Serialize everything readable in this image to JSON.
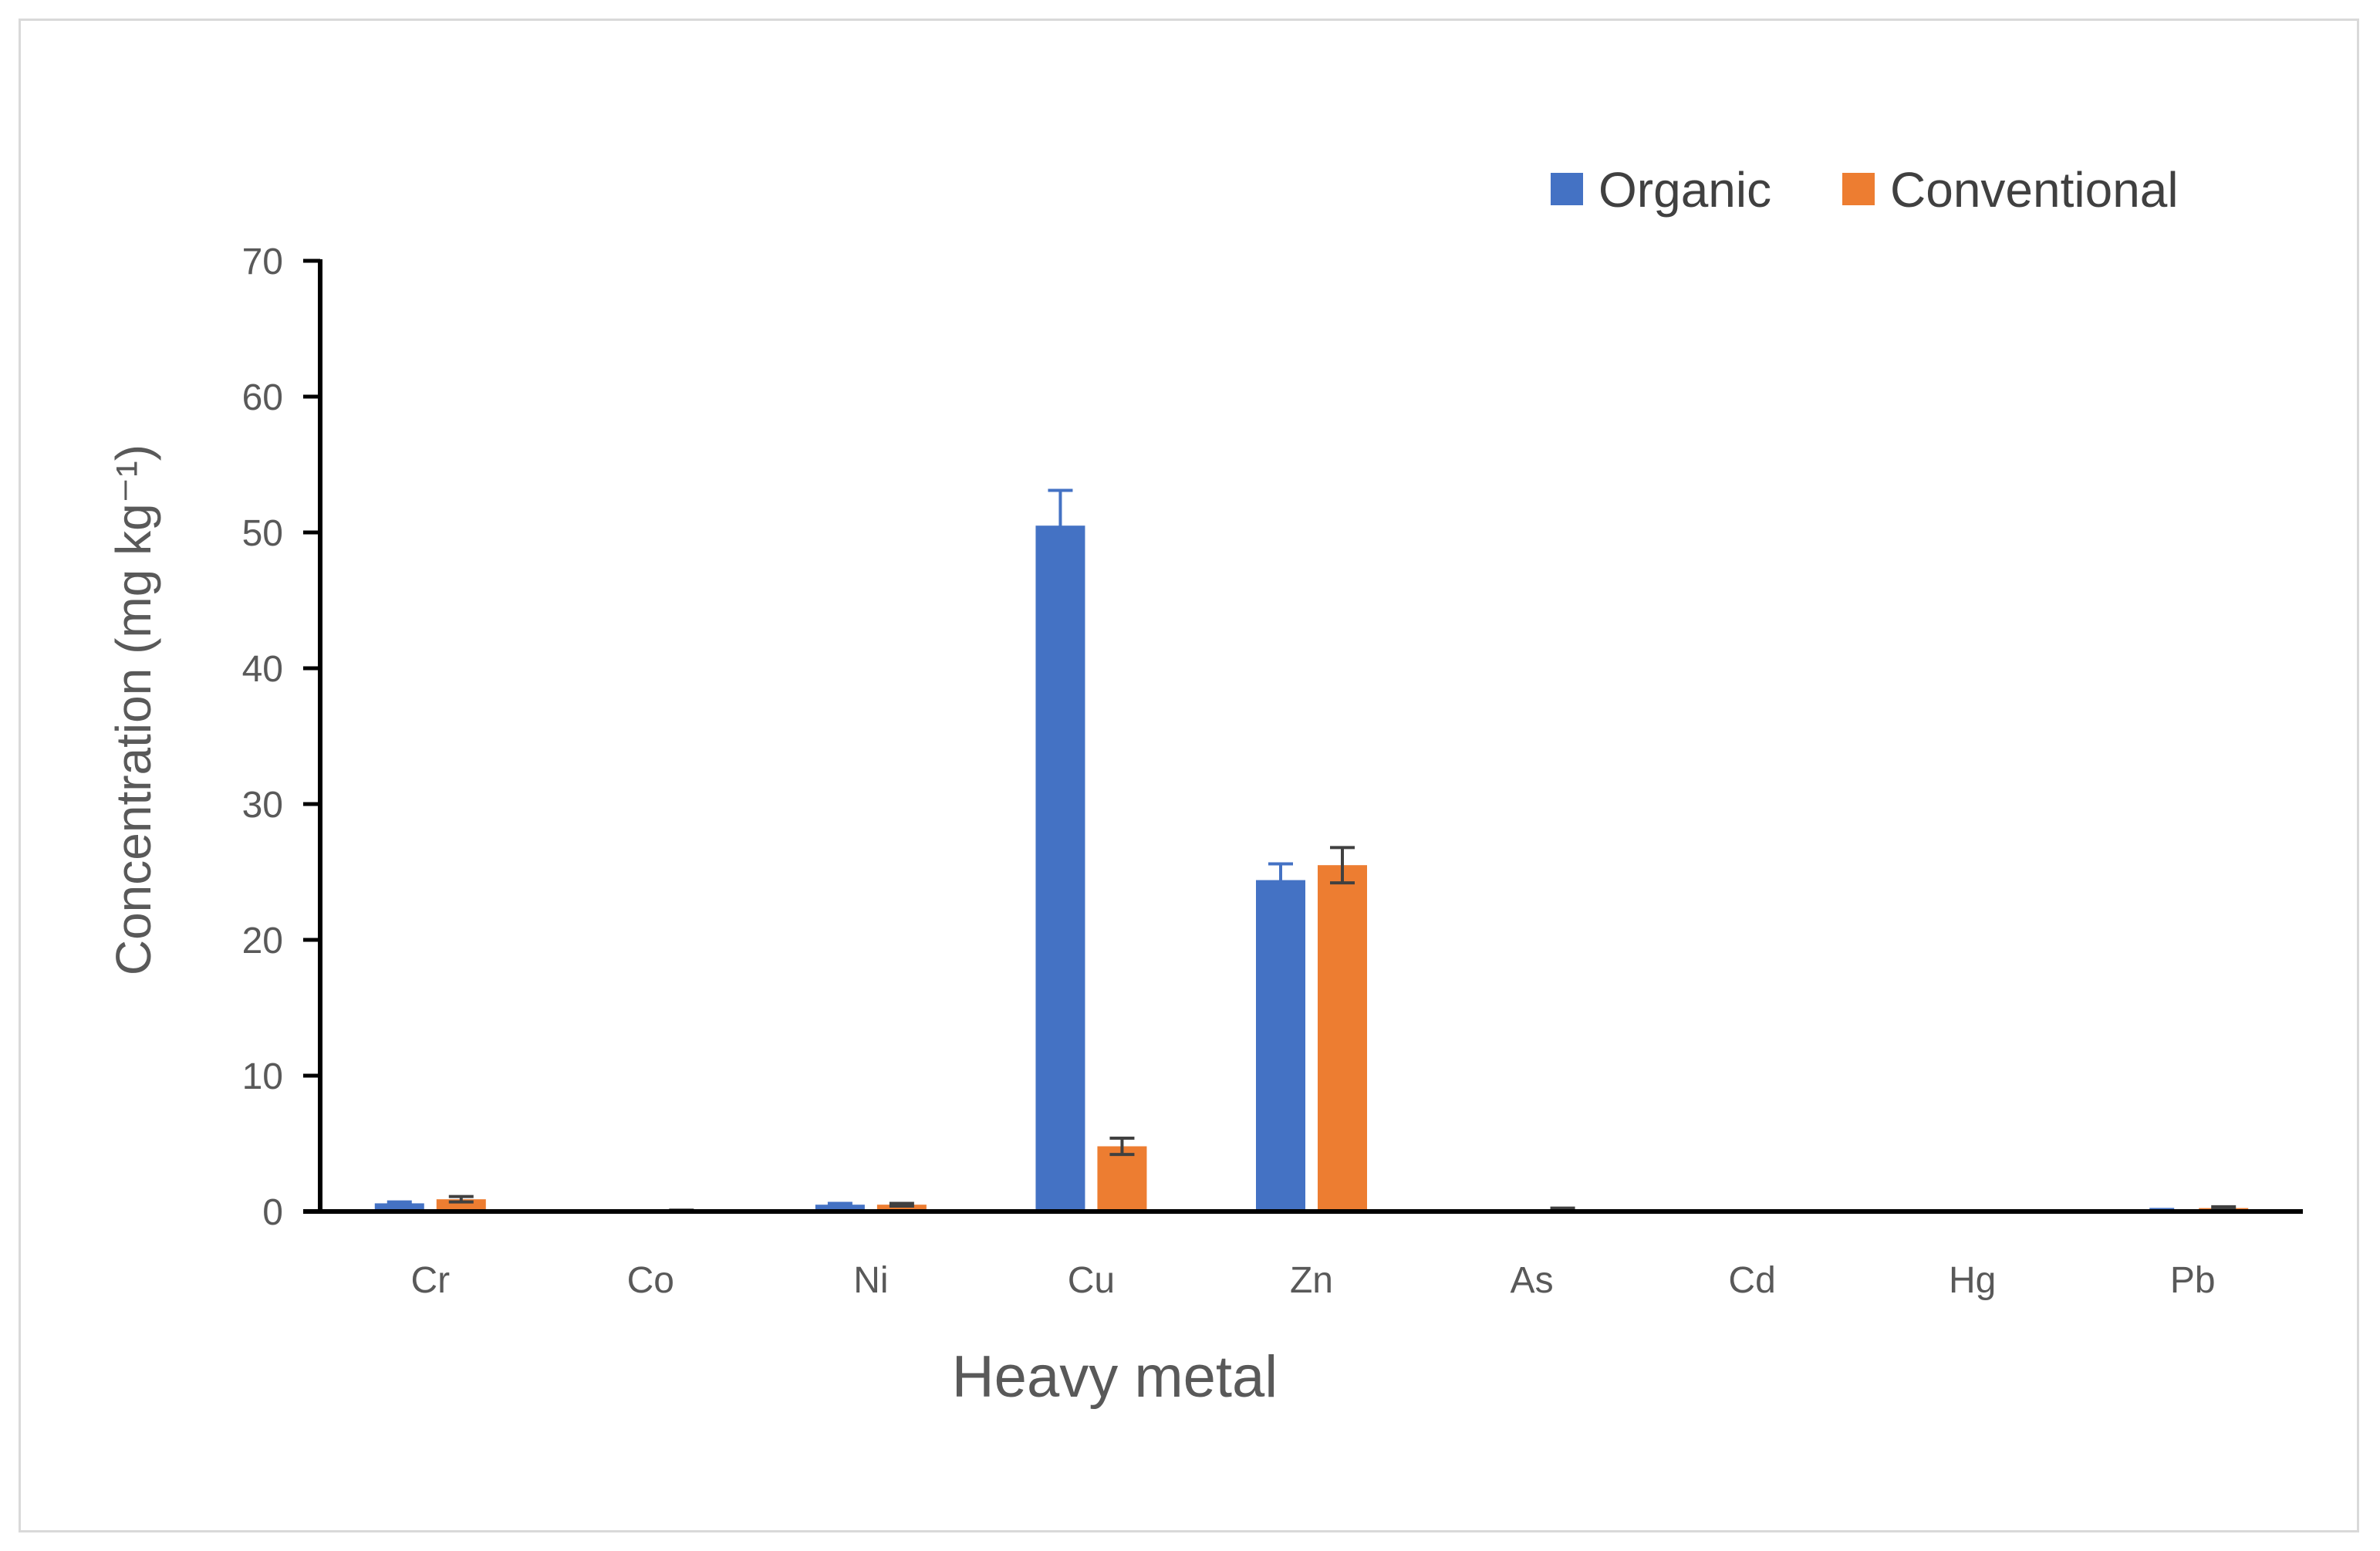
{
  "chart_data": {
    "type": "bar",
    "categories": [
      "Cr",
      "Co",
      "Ni",
      "Cu",
      "Zn",
      "As",
      "Cd",
      "Hg",
      "Pb"
    ],
    "series": [
      {
        "name": "Organic",
        "color": "#4472c4",
        "values": [
          0.6,
          0.02,
          0.5,
          50.5,
          24.4,
          0.01,
          0.0,
          0.0,
          0.1
        ],
        "errors": [
          0.1,
          0.02,
          0.1,
          2.6,
          1.2,
          0.01,
          0.0,
          0.0,
          0.05
        ]
      },
      {
        "name": "Conventional",
        "color": "#ed7d31",
        "values": [
          0.9,
          0.05,
          0.5,
          4.8,
          25.5,
          0.15,
          0.0,
          0.0,
          0.25
        ],
        "errors": [
          0.2,
          0.05,
          0.1,
          0.6,
          1.3,
          0.1,
          0.0,
          0.0,
          0.1
        ]
      }
    ],
    "xlabel": "Heavy metal",
    "ylabel": "Concentration (mg kg⁻¹)",
    "ylim": [
      0,
      70
    ],
    "yticks": [
      "0",
      "10",
      "20",
      "30",
      "40",
      "50",
      "60",
      "70"
    ],
    "grid": false,
    "legend_position": "top-right"
  }
}
